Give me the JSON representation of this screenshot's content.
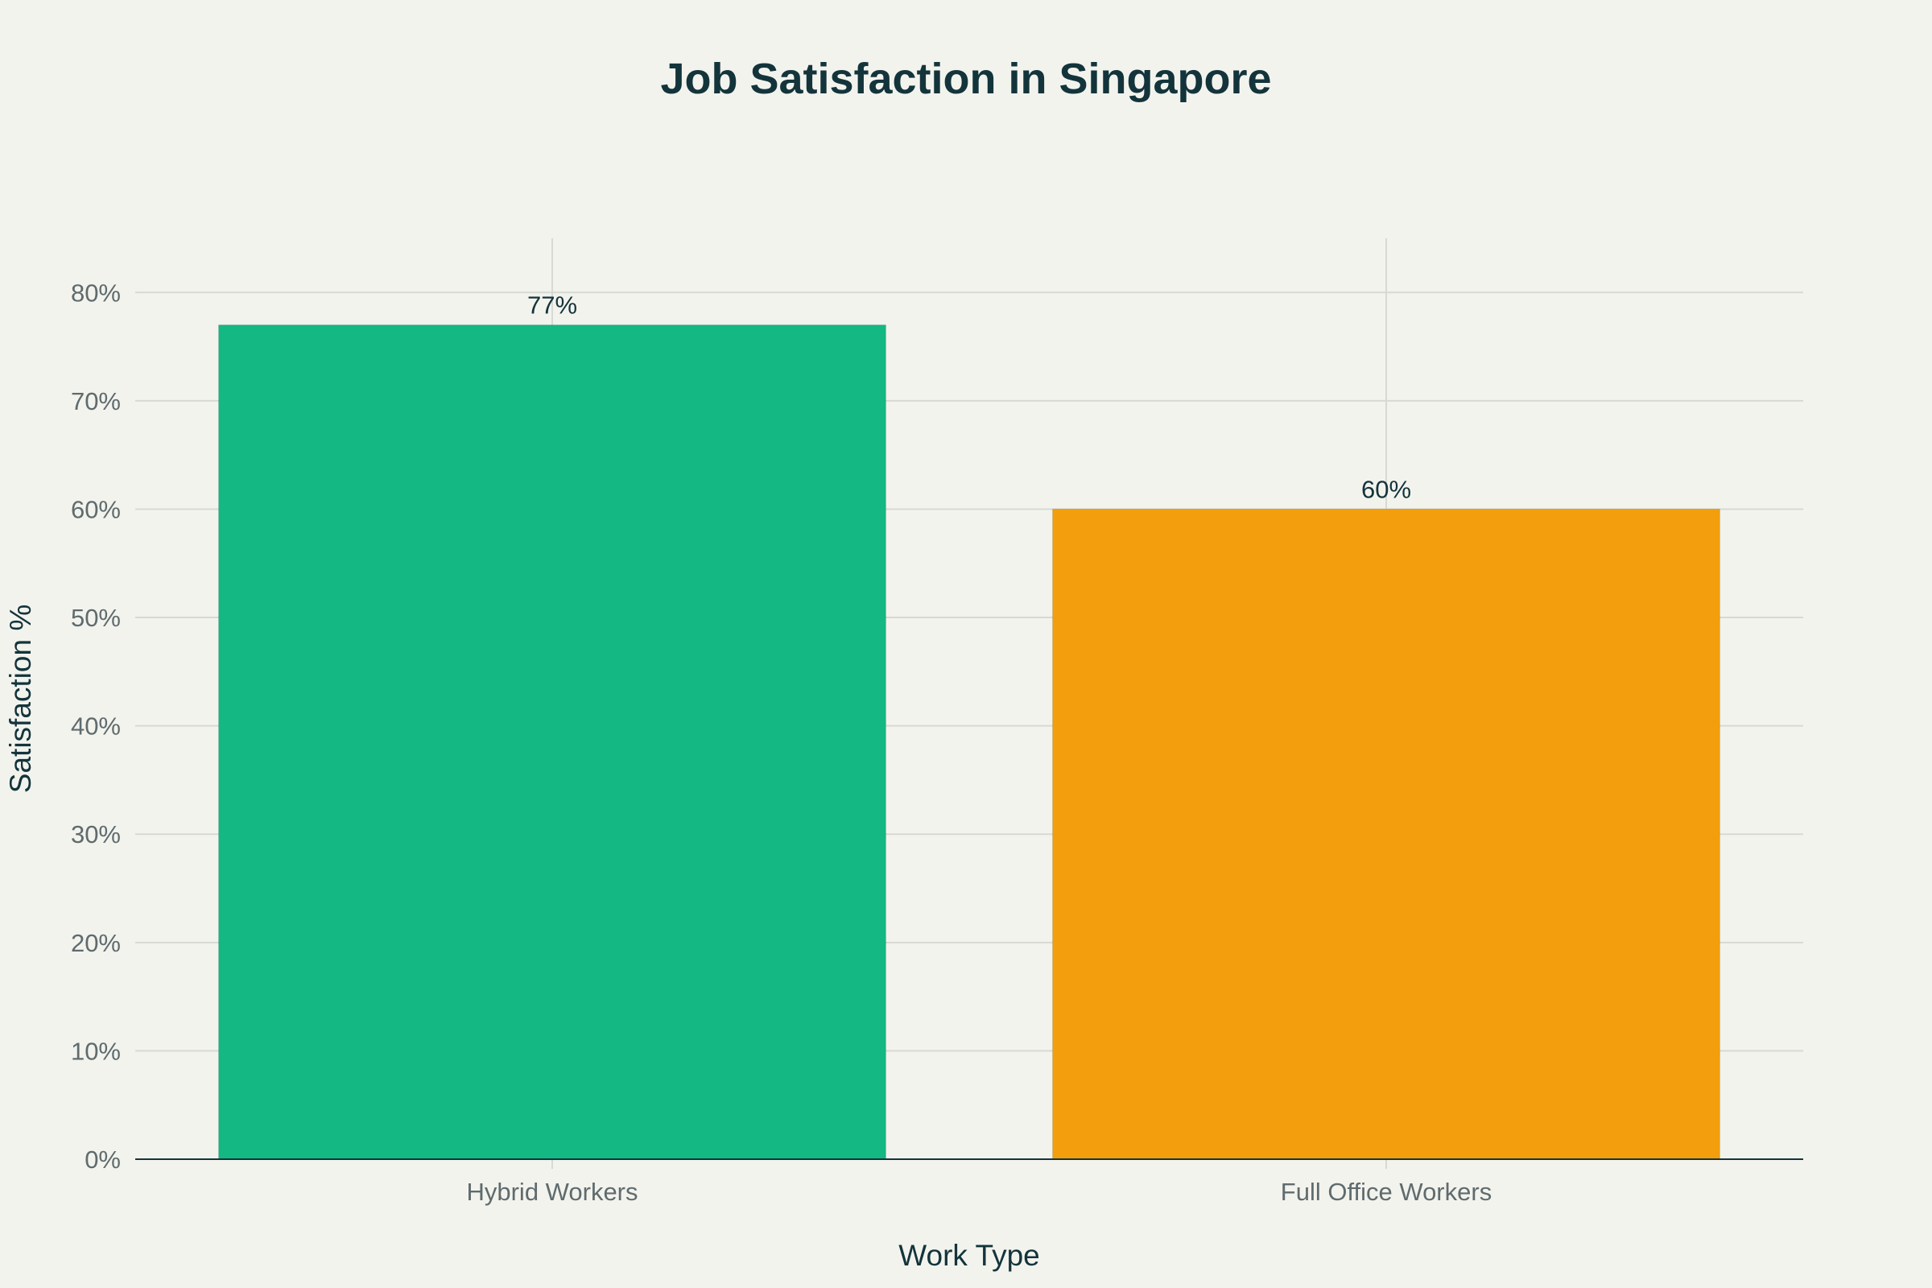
{
  "chart_data": {
    "type": "bar",
    "title": "Job Satisfaction in Singapore",
    "xlabel": "Work Type",
    "ylabel": "Satisfaction %",
    "categories": [
      "Hybrid Workers",
      "Full Office Workers"
    ],
    "values": [
      77,
      60
    ],
    "value_labels": [
      "77%",
      "60%"
    ],
    "colors": [
      "#13b883",
      "#f39f0d"
    ],
    "ylim": [
      0,
      85
    ],
    "y_ticks": [
      0,
      10,
      20,
      30,
      40,
      50,
      60,
      70,
      80
    ],
    "y_tick_labels": [
      "0%",
      "10%",
      "20%",
      "30%",
      "40%",
      "50%",
      "60%",
      "70%",
      "80%"
    ],
    "grid": true,
    "background": "#f3f3ee"
  }
}
